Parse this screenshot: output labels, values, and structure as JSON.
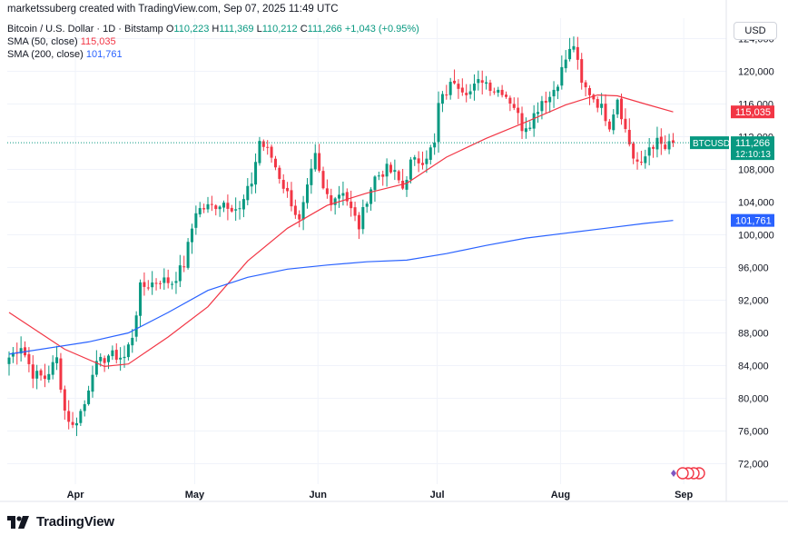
{
  "header": {
    "attribution": "marketssuberg created with TradingView.com, Sep 07, 2025 11:49 UTC",
    "symbol_desc": "Bitcoin / U.S. Dollar · 1D · Bitstamp",
    "o_label": "O",
    "o_value": "110,223",
    "h_label": "H",
    "h_value": "111,369",
    "l_label": "L",
    "l_value": "110,212",
    "c_label": "C",
    "c_value": "111,266",
    "change": "+1,043 (+0.95%)",
    "sma50_label": "SMA (50, close)",
    "sma50_value": "115,035",
    "sma200_label": "SMA (200, close)",
    "sma200_value": "101,761"
  },
  "currency_button": "USD",
  "footer": {
    "brand": "TradingView"
  },
  "colors": {
    "up": "#089981",
    "down": "#f23645",
    "sma50": "#f23645",
    "sma200": "#2962ff",
    "grid": "#f0f3fa",
    "axis_text": "#131722"
  },
  "chart_data": {
    "type": "candlestick",
    "symbol": "BTCUSD",
    "y_ticks": [
      72000,
      76000,
      80000,
      84000,
      88000,
      92000,
      96000,
      100000,
      104000,
      108000,
      112000,
      116000,
      120000,
      124000
    ],
    "y_tick_labels": [
      "72,000",
      "76,000",
      "80,000",
      "84,000",
      "88,000",
      "92,000",
      "96,000",
      "100,000",
      "104,000",
      "108,000",
      "112,000",
      "116,000",
      "120,000",
      "124,000"
    ],
    "ylim": [
      69500,
      126500
    ],
    "x_ticks": [
      {
        "label": "Apr",
        "index": 8
      },
      {
        "label": "May",
        "index": 38
      },
      {
        "label": "Jun",
        "index": 69
      },
      {
        "label": "Jul",
        "index": 99
      },
      {
        "label": "Aug",
        "index": 130
      },
      {
        "label": "Sep",
        "index": 161
      }
    ],
    "last_price": {
      "label": "BTCUSD",
      "value": "111,266",
      "countdown": "12:10:13",
      "price": 111266
    },
    "sma50_badge": {
      "value": "115,035",
      "price": 115035
    },
    "sma200_badge": {
      "value": "101,761",
      "price": 101761
    },
    "key_closes": [
      [
        0,
        85000
      ],
      [
        3,
        86500
      ],
      [
        6,
        83000
      ],
      [
        9,
        82500
      ],
      [
        12,
        84800
      ],
      [
        14,
        78500
      ],
      [
        16,
        76500
      ],
      [
        19,
        79300
      ],
      [
        21,
        83500
      ],
      [
        25,
        85300
      ],
      [
        29,
        85000
      ],
      [
        31,
        87700
      ],
      [
        33,
        93500
      ],
      [
        38,
        94500
      ],
      [
        41,
        94200
      ],
      [
        44,
        96400
      ],
      [
        47,
        103000
      ],
      [
        51,
        103500
      ],
      [
        54,
        104000
      ],
      [
        58,
        103000
      ],
      [
        61,
        106500
      ],
      [
        63,
        111500
      ],
      [
        66,
        109500
      ],
      [
        69,
        106000
      ],
      [
        71,
        104000
      ],
      [
        73,
        101500
      ],
      [
        75,
        105500
      ],
      [
        77,
        109500
      ],
      [
        79,
        105500
      ],
      [
        81,
        104300
      ],
      [
        84,
        105500
      ],
      [
        86,
        103000
      ],
      [
        88,
        101000
      ],
      [
        90,
        104500
      ],
      [
        92,
        107000
      ],
      [
        95,
        108000
      ],
      [
        97,
        107400
      ],
      [
        99,
        105700
      ],
      [
        101,
        108800
      ],
      [
        104,
        109200
      ],
      [
        107,
        111000
      ],
      [
        108,
        115900
      ],
      [
        110,
        117500
      ],
      [
        112,
        119000
      ],
      [
        114,
        118000
      ],
      [
        116,
        117500
      ],
      [
        119,
        119100
      ],
      [
        122,
        117800
      ],
      [
        124,
        117700
      ],
      [
        127,
        115800
      ],
      [
        129,
        113200
      ],
      [
        131,
        113800
      ],
      [
        134,
        116500
      ],
      [
        136,
        116900
      ],
      [
        138,
        118800
      ],
      [
        140,
        121500
      ],
      [
        142,
        123300
      ],
      [
        144,
        118300
      ],
      [
        146,
        117400
      ],
      [
        149,
        115500
      ],
      [
        151,
        113500
      ],
      [
        153,
        116800
      ],
      [
        155,
        112800
      ],
      [
        157,
        109500
      ],
      [
        159,
        108300
      ],
      [
        161,
        110800
      ],
      [
        163,
        111300
      ],
      [
        165,
        110500
      ],
      [
        167,
        111266
      ]
    ],
    "sma50_points": [
      [
        0,
        90500
      ],
      [
        14,
        86000
      ],
      [
        24,
        83900
      ],
      [
        30,
        84200
      ],
      [
        40,
        87500
      ],
      [
        50,
        91200
      ],
      [
        60,
        96800
      ],
      [
        70,
        100800
      ],
      [
        80,
        103600
      ],
      [
        90,
        105100
      ],
      [
        100,
        106300
      ],
      [
        110,
        109500
      ],
      [
        120,
        111800
      ],
      [
        130,
        113800
      ],
      [
        140,
        115900
      ],
      [
        148,
        117100
      ],
      [
        153,
        117000
      ],
      [
        160,
        116000
      ],
      [
        167,
        115035
      ]
    ],
    "sma200_points": [
      [
        0,
        85400
      ],
      [
        20,
        86900
      ],
      [
        30,
        88000
      ],
      [
        40,
        90500
      ],
      [
        50,
        93200
      ],
      [
        60,
        94800
      ],
      [
        70,
        95800
      ],
      [
        80,
        96300
      ],
      [
        90,
        96700
      ],
      [
        100,
        96900
      ],
      [
        110,
        97700
      ],
      [
        120,
        98700
      ],
      [
        130,
        99600
      ],
      [
        140,
        100200
      ],
      [
        150,
        100800
      ],
      [
        160,
        101400
      ],
      [
        167,
        101761
      ]
    ]
  }
}
